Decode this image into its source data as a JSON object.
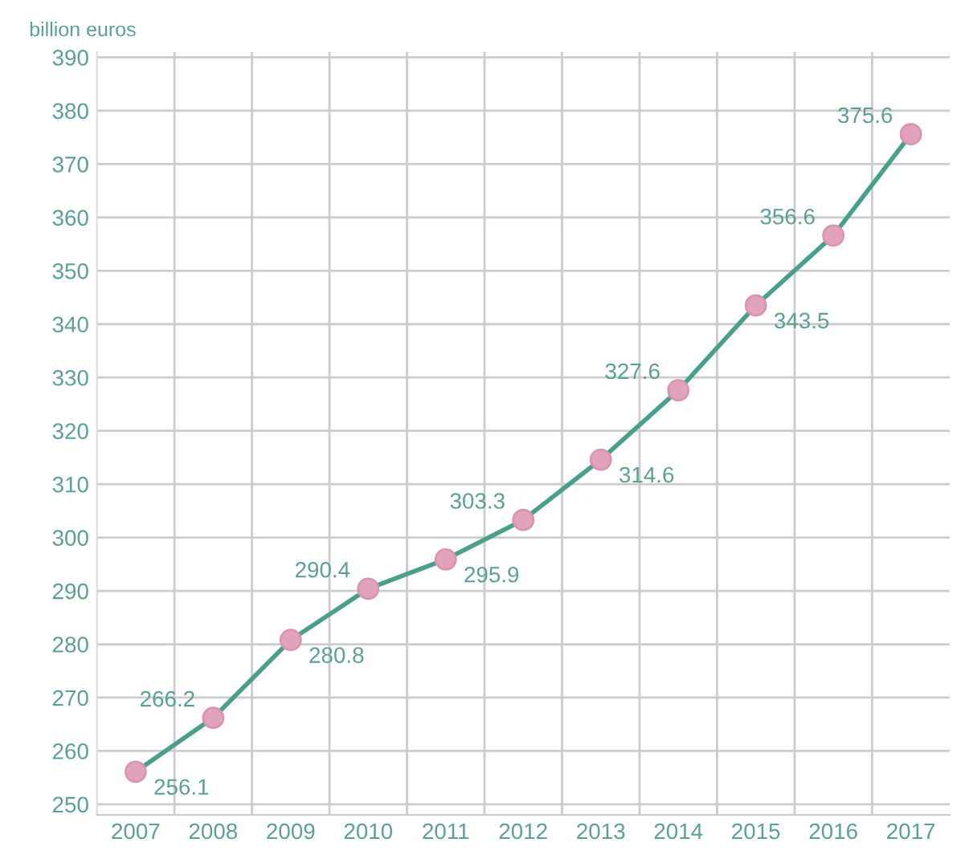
{
  "chart_data": {
    "type": "line",
    "ylabel": "billion euros",
    "categories": [
      "2007",
      "2008",
      "2009",
      "2010",
      "2011",
      "2012",
      "2013",
      "2014",
      "2015",
      "2016",
      "2017"
    ],
    "series": [
      {
        "color": "#4a9e8c",
        "values": [
          256.1,
          266.2,
          280.8,
          290.4,
          295.9,
          303.3,
          314.6,
          327.6,
          343.5,
          356.6,
          375.6
        ]
      }
    ],
    "ylim": [
      248,
      391
    ],
    "yticks": [
      250,
      260,
      270,
      280,
      290,
      300,
      310,
      320,
      330,
      340,
      350,
      360,
      370,
      380,
      390
    ],
    "grid": true,
    "marker": "circle",
    "line_style": "solid",
    "data_labels": true
  }
}
